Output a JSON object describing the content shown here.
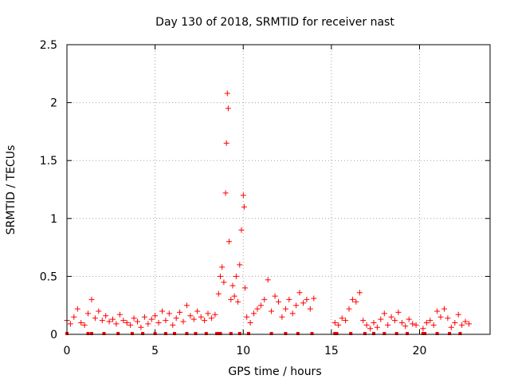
{
  "chart_data": {
    "type": "scatter",
    "title": "Day 130 of 2018, SRMTID for receiver nast",
    "xlabel": "GPS time / hours",
    "ylabel": "SRMTID / TECUs",
    "xlim": [
      0,
      24
    ],
    "ylim": [
      0,
      2.5
    ],
    "x_ticks": [
      "0",
      "5",
      "10",
      "15",
      "20"
    ],
    "x_tick_values": [
      0,
      5,
      10,
      15,
      20
    ],
    "y_ticks": [
      "0",
      "0.5",
      "1",
      "1.5",
      "2",
      "2.5"
    ],
    "y_tick_values": [
      0,
      0.5,
      1,
      1.5,
      2,
      2.5
    ],
    "grid": true,
    "marker": "+",
    "series_color": "#ff0000",
    "series": [
      {
        "name": "SRMTID",
        "x": [
          0.0,
          0.2,
          0.4,
          0.6,
          0.8,
          1.0,
          1.2,
          1.4,
          1.6,
          1.8,
          2.0,
          2.2,
          2.4,
          2.6,
          2.8,
          3.0,
          3.2,
          3.4,
          3.6,
          3.8,
          4.0,
          4.2,
          4.4,
          4.6,
          4.8,
          5.0,
          5.2,
          5.4,
          5.6,
          5.8,
          6.0,
          6.2,
          6.4,
          6.6,
          6.8,
          7.0,
          7.2,
          7.4,
          7.6,
          7.8,
          8.0,
          8.2,
          8.4,
          8.6,
          8.7,
          8.8,
          8.9,
          9.0,
          9.05,
          9.1,
          9.15,
          9.2,
          9.3,
          9.4,
          9.5,
          9.6,
          9.7,
          9.8,
          9.9,
          10.0,
          10.05,
          10.1,
          10.2,
          10.4,
          10.6,
          10.8,
          11.0,
          11.2,
          11.4,
          11.6,
          11.8,
          12.0,
          12.2,
          12.4,
          12.6,
          12.8,
          13.0,
          13.2,
          13.4,
          13.6,
          13.8,
          14.0,
          15.2,
          15.4,
          15.6,
          15.8,
          16.0,
          16.2,
          16.4,
          16.6,
          16.8,
          17.0,
          17.2,
          17.4,
          17.6,
          17.8,
          18.0,
          18.2,
          18.4,
          18.6,
          18.8,
          19.0,
          19.2,
          19.4,
          19.6,
          19.8,
          20.2,
          20.4,
          20.6,
          20.8,
          21.0,
          21.2,
          21.4,
          21.6,
          21.8,
          22.0,
          22.2,
          22.4,
          22.6,
          22.8
        ],
        "y": [
          0.12,
          0.09,
          0.15,
          0.22,
          0.1,
          0.08,
          0.18,
          0.3,
          0.14,
          0.2,
          0.12,
          0.16,
          0.11,
          0.13,
          0.09,
          0.17,
          0.12,
          0.1,
          0.08,
          0.14,
          0.11,
          0.06,
          0.15,
          0.09,
          0.13,
          0.16,
          0.1,
          0.2,
          0.12,
          0.18,
          0.08,
          0.14,
          0.19,
          0.11,
          0.25,
          0.16,
          0.13,
          0.2,
          0.15,
          0.12,
          0.18,
          0.14,
          0.17,
          0.35,
          0.5,
          0.58,
          0.45,
          1.22,
          1.65,
          2.08,
          1.95,
          0.8,
          0.3,
          0.42,
          0.33,
          0.5,
          0.28,
          0.6,
          0.9,
          1.2,
          1.1,
          0.4,
          0.15,
          0.1,
          0.18,
          0.22,
          0.25,
          0.3,
          0.47,
          0.2,
          0.33,
          0.28,
          0.15,
          0.22,
          0.3,
          0.18,
          0.25,
          0.36,
          0.27,
          0.3,
          0.22,
          0.31,
          0.1,
          0.08,
          0.14,
          0.12,
          0.22,
          0.3,
          0.28,
          0.36,
          0.12,
          0.08,
          0.05,
          0.1,
          0.06,
          0.13,
          0.18,
          0.08,
          0.15,
          0.12,
          0.19,
          0.1,
          0.07,
          0.13,
          0.09,
          0.08,
          0.05,
          0.1,
          0.12,
          0.08,
          0.2,
          0.15,
          0.22,
          0.14,
          0.06,
          0.1,
          0.17,
          0.08,
          0.11,
          0.09
        ]
      }
    ],
    "zero_markers_x": [
      0.0,
      1.2,
      1.4,
      2.1,
      2.9,
      3.7,
      4.3,
      5.0,
      5.6,
      6.1,
      6.8,
      7.3,
      7.9,
      8.5,
      8.6,
      8.7,
      9.3,
      9.8,
      10.3,
      11.6,
      12.4,
      13.1,
      13.9,
      15.2,
      15.3,
      16.1,
      16.9,
      17.4,
      18.0,
      18.7,
      19.3,
      20.2,
      20.3,
      21.0,
      21.7,
      22.3
    ]
  }
}
